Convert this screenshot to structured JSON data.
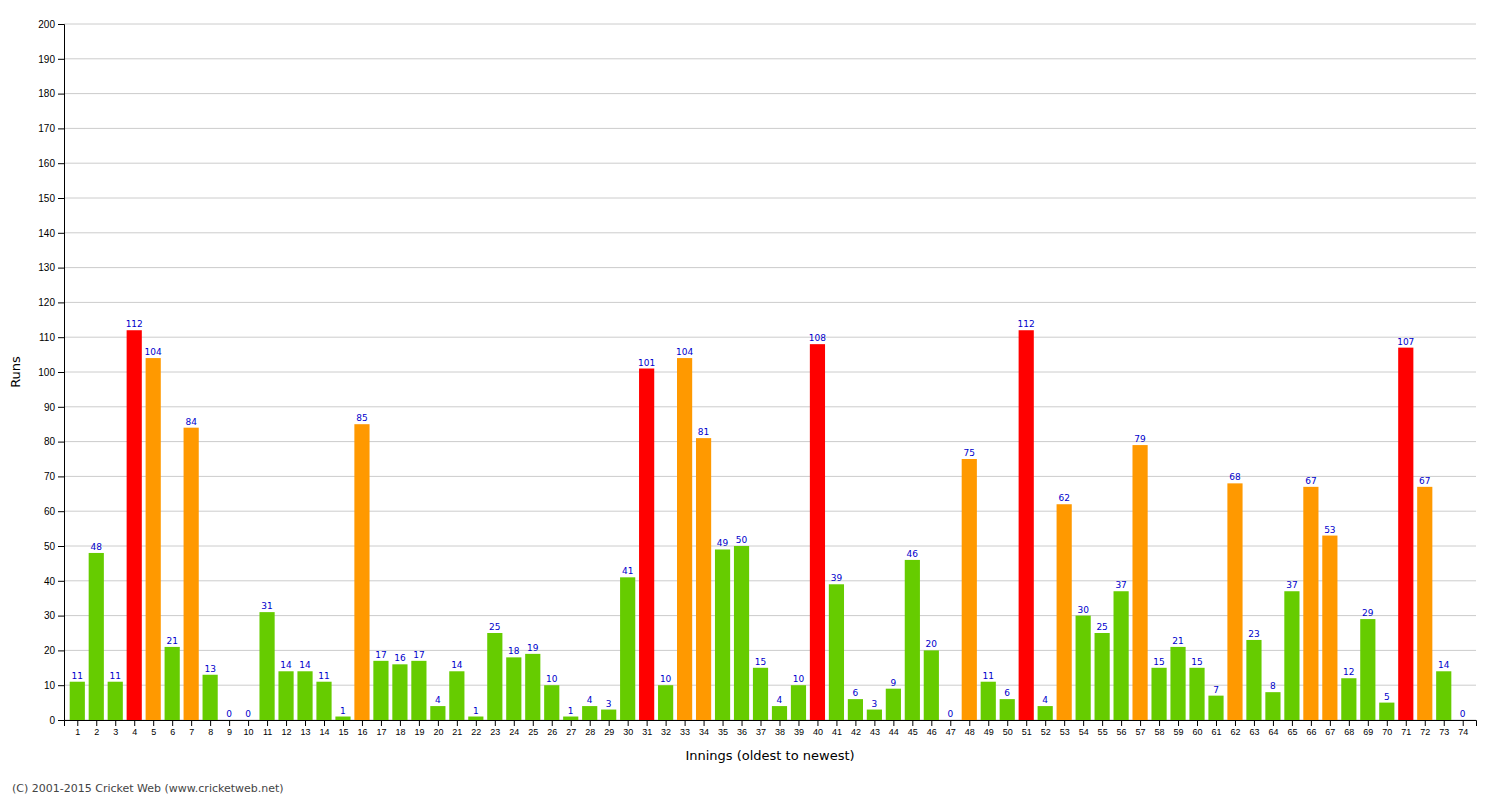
{
  "chart_data": {
    "type": "bar",
    "xlabel": "Innings (oldest to newest)",
    "ylabel": "Runs",
    "footer": "(C) 2001-2015 Cricket Web (www.cricketweb.net)",
    "x": [
      1,
      2,
      3,
      4,
      5,
      6,
      7,
      8,
      9,
      10,
      11,
      12,
      13,
      14,
      15,
      16,
      17,
      18,
      19,
      20,
      21,
      22,
      23,
      24,
      25,
      26,
      27,
      28,
      29,
      30,
      31,
      32,
      33,
      34,
      35,
      36,
      37,
      38,
      39,
      40,
      41,
      42,
      43,
      44,
      45,
      46,
      47,
      48,
      49,
      50,
      51,
      52,
      53,
      54,
      55,
      56,
      57,
      58,
      59,
      60,
      61,
      62,
      63,
      64,
      65,
      66,
      67,
      68,
      69,
      70,
      71,
      72,
      73,
      74
    ],
    "values": [
      11,
      48,
      11,
      112,
      104,
      21,
      84,
      13,
      0,
      0,
      31,
      14,
      14,
      11,
      1,
      85,
      17,
      16,
      17,
      4,
      14,
      1,
      25,
      18,
      19,
      10,
      1,
      4,
      3,
      41,
      101,
      10,
      104,
      81,
      49,
      50,
      15,
      4,
      10,
      108,
      39,
      6,
      3,
      9,
      46,
      20,
      0,
      75,
      11,
      6,
      112,
      4,
      62,
      30,
      25,
      37,
      79,
      15,
      21,
      15,
      7,
      68,
      23,
      8,
      37,
      67,
      53,
      12,
      29,
      5,
      107,
      67,
      14,
      0
    ],
    "colors": [
      "#66cc00",
      "#66cc00",
      "#66cc00",
      "#ff0000",
      "#ff9900",
      "#66cc00",
      "#ff9900",
      "#66cc00",
      "#66cc00",
      "#66cc00",
      "#66cc00",
      "#66cc00",
      "#66cc00",
      "#66cc00",
      "#66cc00",
      "#ff9900",
      "#66cc00",
      "#66cc00",
      "#66cc00",
      "#66cc00",
      "#66cc00",
      "#66cc00",
      "#66cc00",
      "#66cc00",
      "#66cc00",
      "#66cc00",
      "#66cc00",
      "#66cc00",
      "#66cc00",
      "#66cc00",
      "#ff0000",
      "#66cc00",
      "#ff9900",
      "#ff9900",
      "#66cc00",
      "#66cc00",
      "#66cc00",
      "#66cc00",
      "#66cc00",
      "#ff0000",
      "#66cc00",
      "#66cc00",
      "#66cc00",
      "#66cc00",
      "#66cc00",
      "#66cc00",
      "#66cc00",
      "#ff9900",
      "#66cc00",
      "#66cc00",
      "#ff0000",
      "#66cc00",
      "#ff9900",
      "#66cc00",
      "#66cc00",
      "#66cc00",
      "#ff9900",
      "#66cc00",
      "#66cc00",
      "#66cc00",
      "#66cc00",
      "#ff9900",
      "#66cc00",
      "#66cc00",
      "#66cc00",
      "#ff9900",
      "#ff9900",
      "#66cc00",
      "#66cc00",
      "#66cc00",
      "#ff0000",
      "#ff9900",
      "#66cc00",
      "#66cc00"
    ],
    "xlim": [
      0.3,
      74.7
    ],
    "xticks": [
      1,
      2,
      3,
      4,
      5,
      6,
      7,
      8,
      9,
      10,
      11,
      12,
      13,
      14,
      15,
      16,
      17,
      18,
      19,
      20,
      21,
      22,
      23,
      24,
      25,
      26,
      27,
      28,
      29,
      30,
      31,
      32,
      33,
      34,
      35,
      36,
      37,
      38,
      39,
      40,
      41,
      42,
      43,
      44,
      45,
      46,
      47,
      48,
      49,
      50,
      51,
      52,
      53,
      54,
      55,
      56,
      57,
      58,
      59,
      60,
      61,
      62,
      63,
      64,
      65,
      66,
      67,
      68,
      69,
      70,
      71,
      72,
      73,
      74
    ],
    "ylim": [
      0,
      200
    ],
    "yticks": [
      0,
      10,
      20,
      30,
      40,
      50,
      60,
      70,
      80,
      90,
      100,
      110,
      120,
      130,
      140,
      150,
      160,
      170,
      180,
      190,
      200
    ],
    "grid": true,
    "data_labels": true
  }
}
